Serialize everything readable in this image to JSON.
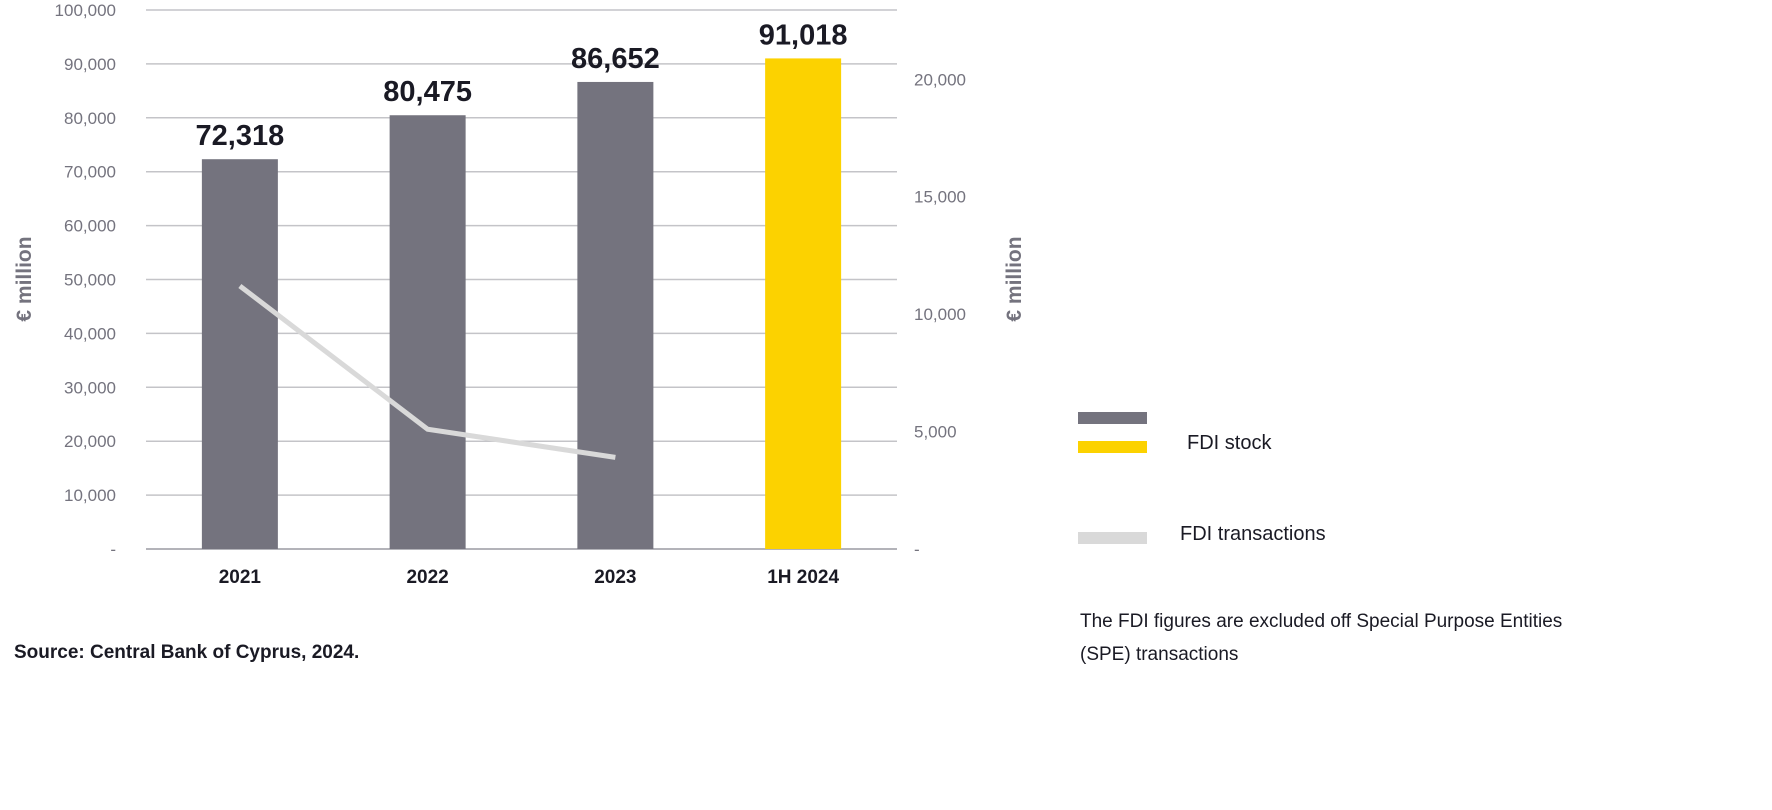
{
  "chart_data": {
    "type": "bar+line",
    "categories": [
      "2021",
      "2022",
      "2023",
      "1H 2024"
    ],
    "series": [
      {
        "name": "FDI stock",
        "type": "bar",
        "axis": "left",
        "values": [
          72318,
          80475,
          86652,
          91018
        ],
        "data_labels": [
          "72,318",
          "80,475",
          "86,652",
          "91,018"
        ],
        "colors": [
          "#74737e",
          "#74737e",
          "#74737e",
          "#fcd200"
        ]
      },
      {
        "name": "FDI transactions",
        "type": "line",
        "axis": "right",
        "values": [
          11200,
          5100,
          3900,
          null
        ],
        "color": "#d9d9d9"
      }
    ],
    "left_axis": {
      "label": "€ million",
      "ylim": [
        0,
        100000
      ],
      "ticks": [
        "-",
        "10,000",
        "20,000",
        "30,000",
        "40,000",
        "50,000",
        "60,000",
        "70,000",
        "80,000",
        "90,000",
        "100,000"
      ]
    },
    "right_axis": {
      "label": "€ million",
      "ylim": [
        0,
        22950
      ],
      "tick_values": [
        0,
        5000,
        10000,
        15000,
        20000
      ],
      "ticks": [
        "-",
        "5,000",
        "10,000",
        "15,000",
        "20,000"
      ]
    },
    "grid": true,
    "legend": {
      "placement": "right",
      "entries": [
        {
          "swatch": "#74737e",
          "label": ""
        },
        {
          "swatch": "#fcd200",
          "label": "FDI stock"
        },
        {
          "swatch": "#d9d9d9",
          "label": "FDI transactions"
        }
      ]
    }
  },
  "source": "Source: Central Bank of Cyprus, 2024.",
  "note": "The FDI figures are excluded off Special Purpose Entities (SPE) transactions"
}
